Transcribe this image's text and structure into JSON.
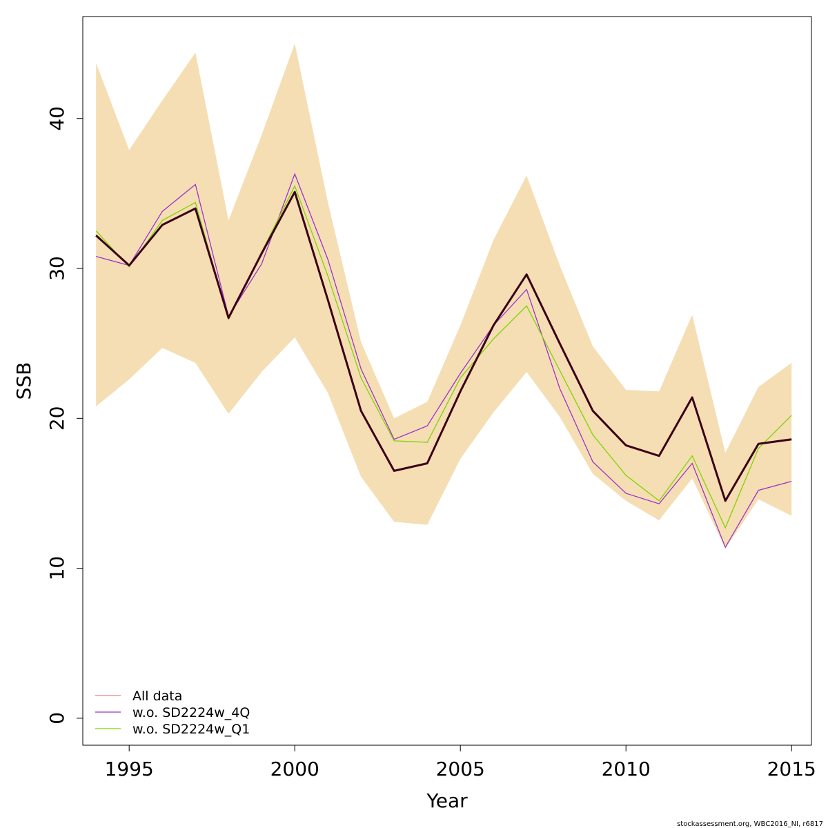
{
  "chart_data": {
    "type": "line",
    "xlabel": "Year",
    "ylabel": "SSB",
    "xlim": [
      1993.6,
      2015.6
    ],
    "ylim": [
      -1.8,
      46.8
    ],
    "x_ticks": [
      1995,
      2000,
      2005,
      2010,
      2015
    ],
    "y_ticks": [
      0,
      10,
      20,
      30,
      40
    ],
    "grid": false,
    "legend_position": "bottom-left",
    "x": [
      1994,
      1995,
      1996,
      1997,
      1998,
      1999,
      2000,
      2001,
      2002,
      2003,
      2004,
      2005,
      2006,
      2007,
      2008,
      2009,
      2010,
      2011,
      2012,
      2013,
      2014,
      2015
    ],
    "band": {
      "color": "#f5deb3",
      "upper": [
        43.7,
        37.9,
        41.2,
        44.4,
        33.2,
        38.9,
        45.0,
        34.4,
        25.1,
        20.0,
        21.1,
        26.2,
        31.9,
        36.2,
        30.2,
        24.8,
        21.9,
        21.8,
        26.9,
        17.7,
        22.1,
        23.7
      ],
      "lower": [
        20.8,
        22.6,
        24.7,
        23.7,
        20.3,
        23.1,
        25.4,
        21.7,
        16.1,
        13.1,
        12.9,
        17.3,
        20.4,
        23.1,
        20.1,
        16.3,
        14.5,
        13.2,
        16.0,
        11.3,
        14.6,
        13.5
      ]
    },
    "bold_line": {
      "color": "#3a0018",
      "values": [
        32.2,
        30.2,
        32.9,
        34.0,
        26.7,
        31.0,
        35.1,
        27.9,
        20.5,
        16.5,
        17.0,
        21.8,
        26.2,
        29.6,
        25.0,
        20.5,
        18.2,
        17.5,
        21.4,
        14.5,
        18.3,
        18.6
      ]
    },
    "series": [
      {
        "name": "All data",
        "color": "#f08080",
        "values": [
          32.2,
          30.2,
          32.9,
          34.0,
          26.7,
          31.0,
          35.1,
          27.9,
          20.5,
          16.5,
          17.0,
          21.8,
          26.2,
          29.6,
          25.0,
          20.5,
          18.2,
          17.5,
          21.4,
          14.5,
          18.3,
          18.6
        ]
      },
      {
        "name": "w.o. SD2224w_4Q",
        "color": "#9a32cd",
        "values": [
          30.8,
          30.2,
          33.8,
          35.6,
          26.8,
          30.3,
          36.3,
          30.6,
          23.3,
          18.6,
          19.5,
          23.0,
          26.2,
          28.6,
          22.0,
          17.1,
          15.0,
          14.3,
          17.0,
          11.4,
          15.2,
          15.8
        ]
      },
      {
        "name": "w.o. SD2224w_Q1",
        "color": "#7fd400",
        "values": [
          32.5,
          30.1,
          33.2,
          34.4,
          26.6,
          31.1,
          35.5,
          29.5,
          22.7,
          18.5,
          18.4,
          22.7,
          25.3,
          27.5,
          23.2,
          18.9,
          16.2,
          14.5,
          17.5,
          12.7,
          18.0,
          20.2
        ]
      }
    ]
  },
  "footer": "stockassessment.org, WBC2016_NI, r6817"
}
